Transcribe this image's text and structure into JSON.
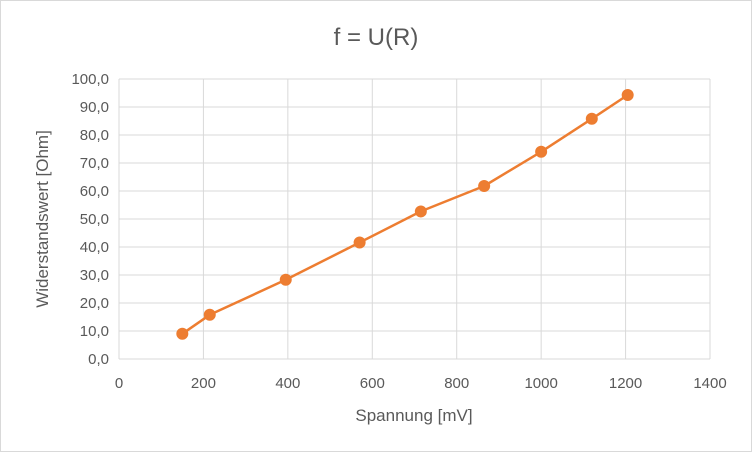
{
  "chart_data": {
    "type": "scatter",
    "title": "f = U(R)",
    "xlabel": "Spannung [mV]",
    "ylabel": "Widerstandswert [Ohm]",
    "xlim": [
      0,
      1400
    ],
    "ylim": [
      0,
      100
    ],
    "x_ticks": [
      "0",
      "200",
      "400",
      "600",
      "800",
      "1000",
      "1200",
      "1400"
    ],
    "y_ticks": [
      "0,0",
      "10,0",
      "20,0",
      "30,0",
      "40,0",
      "50,0",
      "60,0",
      "70,0",
      "80,0",
      "90,0",
      "100,0"
    ],
    "grid": true,
    "legend": "none",
    "series": [
      {
        "color": "#ed7d31",
        "lines": true,
        "markers": true,
        "x": [
          150,
          215,
          395,
          570,
          715,
          865,
          1000,
          1120,
          1205
        ],
        "y": [
          9.0,
          15.8,
          28.3,
          41.6,
          52.7,
          61.8,
          74.0,
          85.8,
          94.3
        ]
      }
    ]
  }
}
